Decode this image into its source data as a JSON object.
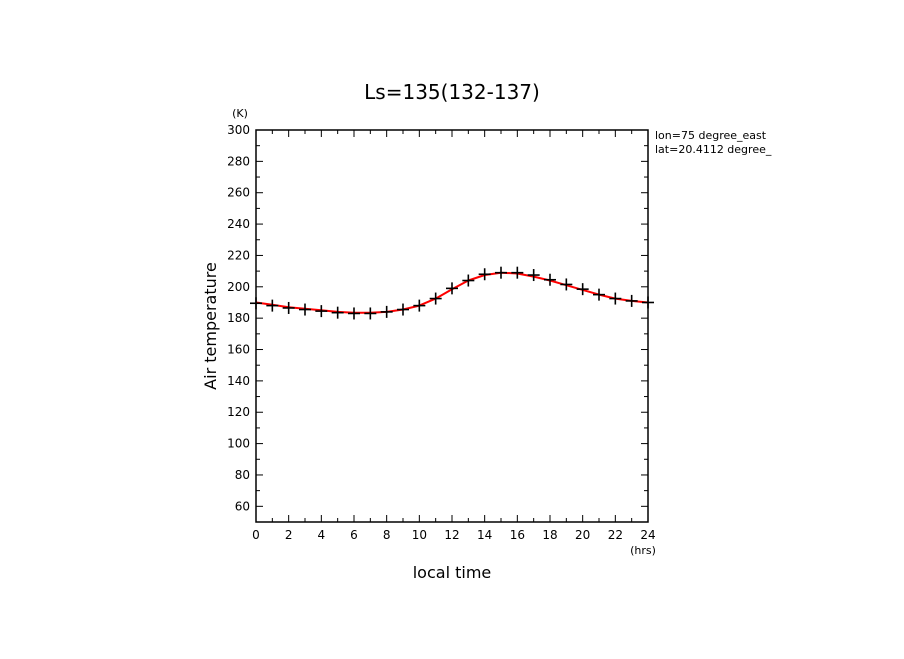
{
  "chart_data": {
    "type": "line",
    "title": "Ls=135(132-137)",
    "xlabel": "local time",
    "ylabel": "Air temperature",
    "x_unit": "(hrs)",
    "y_unit": "(K)",
    "xlim": [
      0,
      24
    ],
    "ylim": [
      50,
      300
    ],
    "x_ticks": [
      0,
      2,
      4,
      6,
      8,
      10,
      12,
      14,
      16,
      18,
      20,
      22,
      24
    ],
    "y_ticks": [
      60,
      80,
      100,
      120,
      140,
      160,
      180,
      200,
      220,
      240,
      260,
      280,
      300
    ],
    "annotations": [
      "lon=75 degree_east",
      "lat=20.4112 degree_"
    ],
    "grid": false,
    "series": [
      {
        "kind": "markers",
        "marker": "plus",
        "color": "#000000",
        "x": [
          0,
          1,
          2,
          3,
          4,
          5,
          6,
          7,
          8,
          9,
          10,
          11,
          12,
          13,
          14,
          15,
          16,
          17,
          18,
          19,
          20,
          21,
          22,
          23,
          24
        ],
        "values": [
          189.5,
          188,
          186.5,
          185.5,
          184.5,
          183.5,
          183,
          183,
          184,
          185.5,
          188,
          192.5,
          199,
          204,
          208,
          209,
          209,
          207.5,
          204.5,
          201.5,
          198.5,
          195,
          192.5,
          191,
          190
        ]
      },
      {
        "kind": "line",
        "color": "#ff0000",
        "x": [
          0,
          1,
          2,
          3,
          4,
          5,
          6,
          7,
          8,
          9,
          10,
          11,
          12,
          13,
          14,
          15,
          16,
          17,
          18,
          19,
          20,
          21,
          22,
          23,
          24
        ],
        "values": [
          190,
          188.5,
          187,
          186,
          185,
          184,
          183.5,
          183.5,
          184,
          185.5,
          188,
          192.5,
          198.5,
          204,
          207.5,
          209,
          208.5,
          206.5,
          204,
          201,
          198,
          195,
          192.5,
          191,
          190
        ]
      }
    ]
  }
}
